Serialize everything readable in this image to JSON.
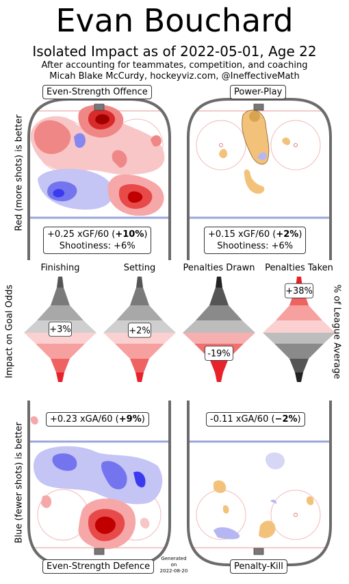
{
  "title": "Evan Bouchard",
  "subtitle": "Isolated Impact as of 2022-05-01, Age 22",
  "note_line1": "After accounting for teammates, competition, and coaching",
  "note_line2": "Micah Blake McCurdy, hockeyviz.com, @IneffectiveMath",
  "panels": {
    "ev_offence": {
      "label": "Even-Strength Offence",
      "stat_line1": "+0.25 xGF/60 (",
      "stat_bold": "+10%",
      "stat_close": ")",
      "shootiness": "Shootiness: +6%"
    },
    "power_play": {
      "label": "Power-Play",
      "stat_line1": "+0.15 xGF/60 (",
      "stat_bold": "+2%",
      "stat_close": ")",
      "shootiness": "Shootiness: +6%"
    },
    "ev_defence": {
      "label": "Even-Strength Defence",
      "stat_line1": "+0.23 xGA/60 (",
      "stat_bold": "+9%",
      "stat_close": ")"
    },
    "penalty_kill": {
      "label": "Penalty-Kill",
      "stat_line1": "-0.11 xGA/60 (",
      "stat_bold": "−2%",
      "stat_close": ")"
    }
  },
  "side_labels": {
    "offence": "Red (more shots) is better",
    "middle_left": "Impact on Goal Odds",
    "middle_right": "% of League Average",
    "defence": "Blue (fewer shots) is better"
  },
  "generated": [
    "Generated",
    "on",
    "2022-08-20"
  ],
  "colors": {
    "red": "#e8222a",
    "blue": "#3a3aee",
    "orange": "#f3c27a",
    "gray_dark": "#222222",
    "rink_border": "#6b6b6b"
  },
  "chart_data": {
    "type": "violin",
    "categories": [
      "Finishing",
      "Setting",
      "Penalties Drawn",
      "Penalties Taken"
    ],
    "values_pct": [
      3,
      2,
      -19,
      38
    ],
    "value_labels": [
      "+3%",
      "+2%",
      "-19%",
      "+38%"
    ],
    "ylabel_left": "Impact on Goal Odds",
    "ylabel_right": "% of League Average"
  }
}
